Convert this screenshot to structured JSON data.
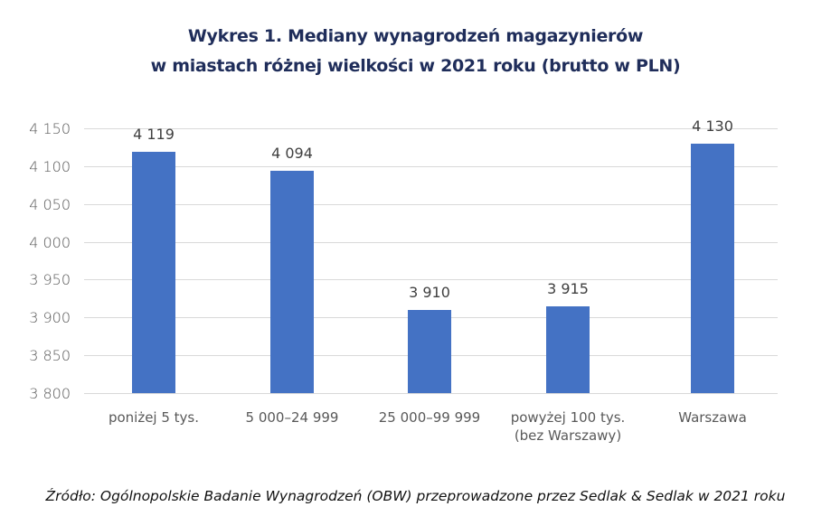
{
  "title": {
    "line1": "Wykres 1. Mediany wynagrodzeń magazynierów",
    "line2": "w miastach różnej wielkości w 2021 roku (brutto w PLN)"
  },
  "y_axis": {
    "ticks": [
      "4 150",
      "4 100",
      "4 050",
      "4 000",
      "3 950",
      "3 900",
      "3 850",
      "3 800"
    ]
  },
  "bars": [
    {
      "category": "poniżej 5 tys.",
      "category_line2": "",
      "label": "4 119"
    },
    {
      "category": "5 000–24 999",
      "category_line2": "",
      "label": "4 094"
    },
    {
      "category": "25 000–99 999",
      "category_line2": "",
      "label": "3 910"
    },
    {
      "category": "powyżej 100 tys.",
      "category_line2": "(bez Warszawy)",
      "label": "3 915"
    },
    {
      "category": "Warszawa",
      "category_line2": "",
      "label": "4 130"
    }
  ],
  "source": "Źródło: Ogólnopolskie Badanie Wynagrodzeń (OBW) przeprowadzone przez Sedlak & Sedlak w 2021 roku",
  "colors": {
    "bar": "#4472c4",
    "title": "#1f2d5a",
    "grid": "#d9d9d9"
  },
  "chart_data": {
    "type": "bar",
    "title": "Wykres 1. Mediany wynagrodzeń magazynierów w miastach różnej wielkości w 2021 roku (brutto w PLN)",
    "categories": [
      "poniżej 5 tys.",
      "5 000–24 999",
      "25 000–99 999",
      "powyżej 100 tys. (bez Warszawy)",
      "Warszawa"
    ],
    "values": [
      4119,
      4094,
      3910,
      3915,
      4130
    ],
    "xlabel": "",
    "ylabel": "",
    "ylim": [
      3800,
      4150
    ],
    "yticks": [
      3800,
      3850,
      3900,
      3950,
      4000,
      4050,
      4100,
      4150
    ],
    "grid": true,
    "legend": null,
    "data_labels": true,
    "source": "Źródło: Ogólnopolskie Badanie Wynagrodzeń (OBW) przeprowadzone przez Sedlak & Sedlak w 2021 roku"
  }
}
